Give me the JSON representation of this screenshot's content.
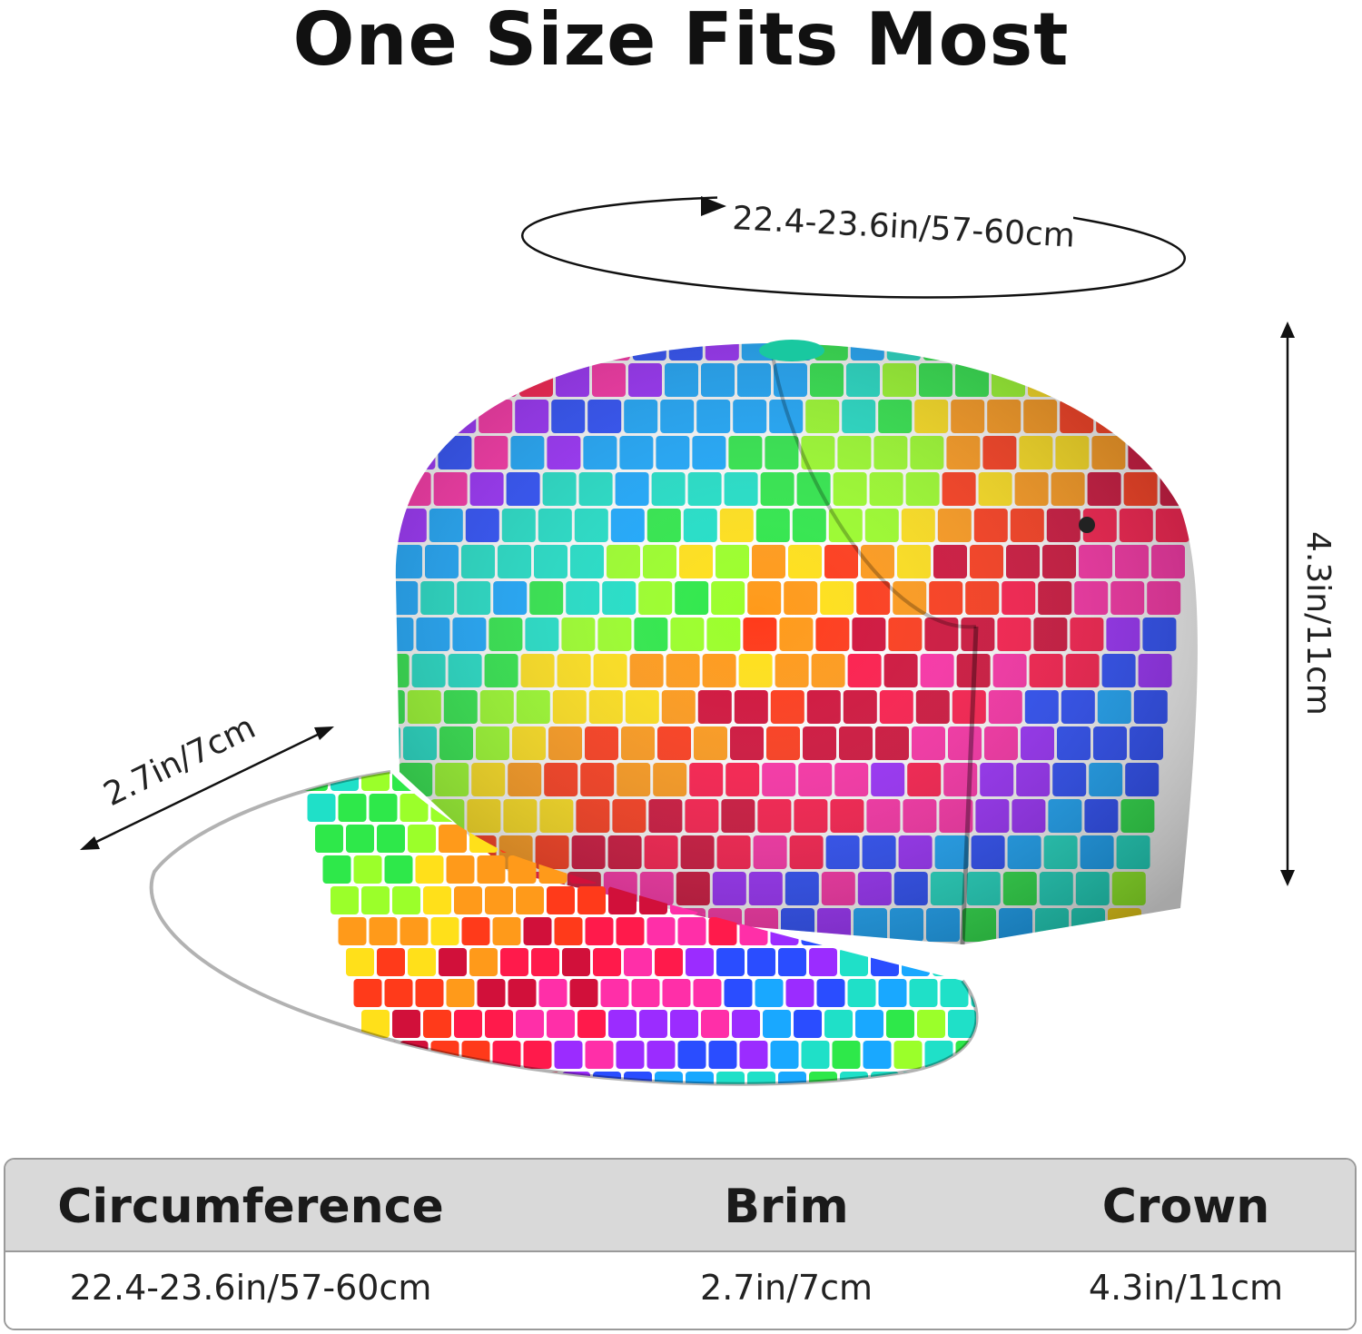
{
  "header": {
    "title": "One Size Fits Most"
  },
  "dimensions": {
    "circumference_label": "22.4-23.6in/57-60cm",
    "brim_label": "2.7in/7cm",
    "crown_label": "4.3in/11cm"
  },
  "product": {
    "image_name": "rainbow-mosaic-snapback-cap",
    "pattern_colors": [
      "#ff1a4b",
      "#ff2fa8",
      "#9b2cff",
      "#2a4dff",
      "#19a8ff",
      "#1fe0c8",
      "#2ee84a",
      "#9bff2a",
      "#ffe01a",
      "#ff9a1a",
      "#ff3a1a",
      "#d1103a"
    ]
  },
  "size_table": {
    "headers": [
      "Circumference",
      "Brim",
      "Crown"
    ],
    "values": [
      "22.4-23.6in/57-60cm",
      "2.7in/7cm",
      "4.3in/11cm"
    ]
  }
}
